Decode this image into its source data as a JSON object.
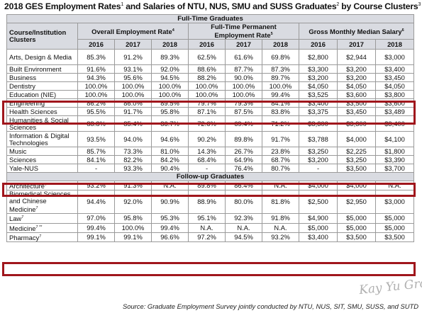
{
  "title": {
    "part1": "2018 GES Employment Rates",
    "sup1": "1",
    "part2": " and Salaries of NTU, NUS, SMU and SUSS Graduates",
    "sup2": "2",
    "part3": " by Course Clusters",
    "sup3": "3"
  },
  "section_fulltime": "Full-Time Graduates",
  "section_followup": "Follow-up Graduates",
  "headers": {
    "course": "Course/Institution Clusters",
    "overall": "Overall Employment Rate",
    "overall_sup": "4",
    "permanent": "Full-Time Permanent Employment Rate",
    "permanent_sup": "5",
    "salary": "Gross Monthly Median Salary",
    "salary_sup": "6",
    "years": [
      "2016",
      "2017",
      "2018",
      "2016",
      "2017",
      "2018",
      "2016",
      "2017",
      "2018"
    ]
  },
  "fulltime_rows": [
    {
      "name": "Arts, Design & Media",
      "sup": "",
      "values": [
        "85.3%",
        "91.2%",
        "89.3%",
        "62.5%",
        "61.6%",
        "69.8%",
        "$2,800",
        "$2,944",
        "$3,000"
      ]
    },
    {
      "name": "Built Environment",
      "sup": "",
      "values": [
        "91.6%",
        "93.1%",
        "92.0%",
        "88.6%",
        "87.7%",
        "87.3%",
        "$3,300",
        "$3,200",
        "$3,400"
      ]
    },
    {
      "name": "Business",
      "sup": "",
      "values": [
        "94.3%",
        "95.6%",
        "94.5%",
        "88.2%",
        "90.0%",
        "89.7%",
        "$3,200",
        "$3,200",
        "$3,450"
      ]
    },
    {
      "name": "Dentistry",
      "sup": "",
      "values": [
        "100.0%",
        "100.0%",
        "100.0%",
        "100.0%",
        "100.0%",
        "100.0%",
        "$4,050",
        "$4,050",
        "$4,050"
      ]
    },
    {
      "name": "Education (NIE)",
      "sup": "",
      "values": [
        "100.0%",
        "100.0%",
        "100.0%",
        "100.0%",
        "100.0%",
        "99.4%",
        "$3,525",
        "$3,600",
        "$3,800"
      ]
    },
    {
      "name": "Engineering",
      "sup": "",
      "values": [
        "86.2%",
        "86.0%",
        "89.5%",
        "79.7%",
        "79.3%",
        "84.1%",
        "$3,400",
        "$3,500",
        "$3,600"
      ]
    },
    {
      "name": "Health Sciences",
      "sup": "",
      "values": [
        "95.5%",
        "91.7%",
        "95.8%",
        "87.1%",
        "87.5%",
        "83.8%",
        "$3,375",
        "$3,450",
        "$3,489"
      ]
    },
    {
      "name": "Humanities & Social Sciences",
      "sup": "",
      "values": [
        "88.8%",
        "85.4%",
        "86.7%",
        "72.6%",
        "69.4%",
        "71.2%",
        "$3,300",
        "$3,300",
        "$3,400"
      ]
    },
    {
      "name": "Information & Digital Technologies",
      "sup": "",
      "values": [
        "93.5%",
        "94.0%",
        "94.6%",
        "90.2%",
        "89.8%",
        "91.7%",
        "$3,788",
        "$4,000",
        "$4,100"
      ]
    },
    {
      "name": "Music",
      "sup": "",
      "values": [
        "85.7%",
        "73.3%",
        "81.0%",
        "14.3%",
        "26.7%",
        "23.8%",
        "$3,250",
        "$2,225",
        "$1,800"
      ]
    },
    {
      "name": "Sciences",
      "sup": "",
      "values": [
        "84.1%",
        "82.2%",
        "84.2%",
        "68.4%",
        "64.9%",
        "68.7%",
        "$3,200",
        "$3,250",
        "$3,390"
      ]
    },
    {
      "name": "Yale-NUS",
      "sup": "",
      "values": [
        "-",
        "93.3%",
        "90.4%",
        "-",
        "76.4%",
        "80.7%",
        "-",
        "$3,500",
        "$3,700"
      ]
    }
  ],
  "followup_rows": [
    {
      "name": "Architecture",
      "sup": "7 **",
      "values": [
        "93.2%",
        "91.3%",
        "N.A.",
        "89.8%",
        "86.4%",
        "N.A.",
        "$4,000",
        "$4,000",
        "N.A."
      ]
    },
    {
      "name": "Biomedical Sciences and Chinese Medicine",
      "sup": "7",
      "values": [
        "94.4%",
        "92.0%",
        "90.9%",
        "88.9%",
        "80.0%",
        "81.8%",
        "$2,500",
        "$2,950",
        "$3,000"
      ]
    },
    {
      "name": "Law",
      "sup": "7",
      "values": [
        "97.0%",
        "95.8%",
        "95.3%",
        "95.1%",
        "92.3%",
        "91.8%",
        "$4,900",
        "$5,000",
        "$5,000"
      ]
    },
    {
      "name": "Medicine",
      "sup": "7 **",
      "values": [
        "99.4%",
        "100.0%",
        "99.4%",
        "N.A.",
        "N.A.",
        "N.A.",
        "$5,000",
        "$5,000",
        "$5,000"
      ]
    },
    {
      "name": "Pharmacy",
      "sup": "7",
      "values": [
        "99.1%",
        "99.1%",
        "96.6%",
        "97.2%",
        "94.5%",
        "93.2%",
        "$3,400",
        "$3,500",
        "$3,500"
      ]
    }
  ],
  "source": "Source: Graduate Employment Survey jointly conducted by NTU, NUS, SIT, SMU, SUSS, and SUTD",
  "watermark": "Kay Yu Group",
  "highlight_color": "#a0161c",
  "header_bg": "#d9dbe1"
}
